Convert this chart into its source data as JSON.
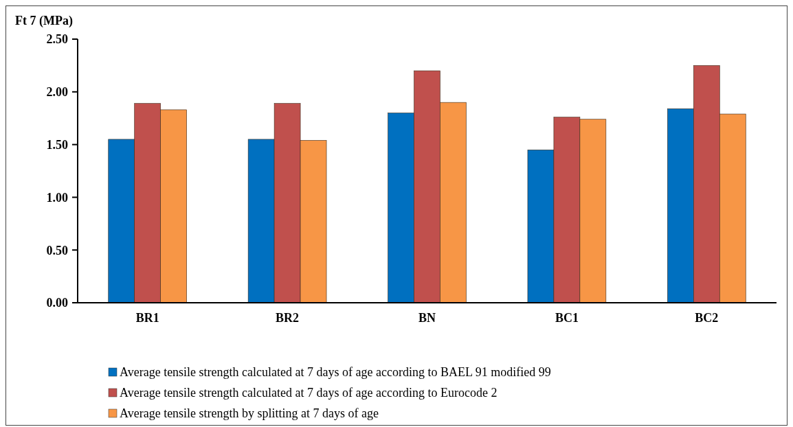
{
  "chart_data": {
    "type": "bar",
    "ylabel": "Ft 7 (MPa)",
    "categories": [
      "BR1",
      "BR2",
      "BN",
      "BC1",
      "BC2"
    ],
    "series": [
      {
        "name": "Average tensile strength calculated at 7 days of age according to BAEL 91 modified 99",
        "color": "#0070c0",
        "values": [
          1.55,
          1.55,
          1.8,
          1.45,
          1.84
        ]
      },
      {
        "name": "Average tensile strength calculated at 7 days of age according to Eurocode 2",
        "color": "#c0504d",
        "values": [
          1.89,
          1.89,
          2.2,
          1.76,
          2.25
        ]
      },
      {
        "name": "Average tensile strength by splitting at 7 days of age",
        "color": "#f79646",
        "values": [
          1.83,
          1.54,
          1.9,
          1.74,
          1.79
        ]
      }
    ],
    "ylim": [
      0,
      2.5
    ],
    "yticks": [
      {
        "value": 0,
        "label": "0.00"
      },
      {
        "value": 0.5,
        "label": "0.50"
      },
      {
        "value": 1,
        "label": "1.00"
      },
      {
        "value": 1.5,
        "label": "1.50"
      },
      {
        "value": 2,
        "label": "2.00"
      },
      {
        "value": 2.5,
        "label": "2.50"
      }
    ],
    "grid": false,
    "legend": "bottom"
  }
}
